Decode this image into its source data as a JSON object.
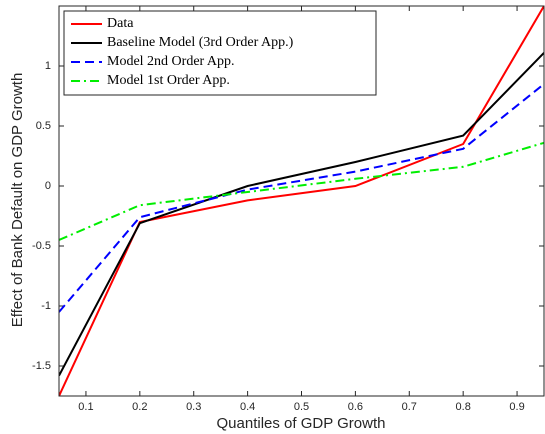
{
  "chart_data": {
    "type": "line",
    "xlabel": "Quantiles of GDP Growth",
    "ylabel": "Effect of Bank Default on GDP Growth",
    "x": [
      0.05,
      0.2,
      0.4,
      0.6,
      0.8,
      0.95
    ],
    "series": [
      {
        "name": "Data",
        "color": "#ff0000",
        "dash": "solid",
        "values": [
          -1.75,
          -0.3,
          -0.12,
          0.0,
          0.35,
          1.5
        ]
      },
      {
        "name": "Baseline Model (3rd Order App.)",
        "color": "#000000",
        "dash": "solid",
        "values": [
          -1.58,
          -0.31,
          0.0,
          0.2,
          0.42,
          1.11
        ]
      },
      {
        "name": "Model 2nd Order App.",
        "color": "#0000ff",
        "dash": "dashed",
        "values": [
          -1.05,
          -0.26,
          -0.03,
          0.12,
          0.31,
          0.85
        ]
      },
      {
        "name": "Model 1st Order App.",
        "color": "#00ee00",
        "dash": "dashdot",
        "values": [
          -0.45,
          -0.16,
          -0.05,
          0.06,
          0.16,
          0.36
        ]
      }
    ],
    "xlim": [
      0.05,
      0.95
    ],
    "ylim": [
      -1.75,
      1.5
    ],
    "xticks": [
      0.1,
      0.2,
      0.3,
      0.4,
      0.5,
      0.6,
      0.7,
      0.8,
      0.9
    ],
    "yticks": [
      -1.5,
      -1,
      -0.5,
      0,
      0.5,
      1
    ],
    "legend": "upper-left",
    "grid": false
  }
}
